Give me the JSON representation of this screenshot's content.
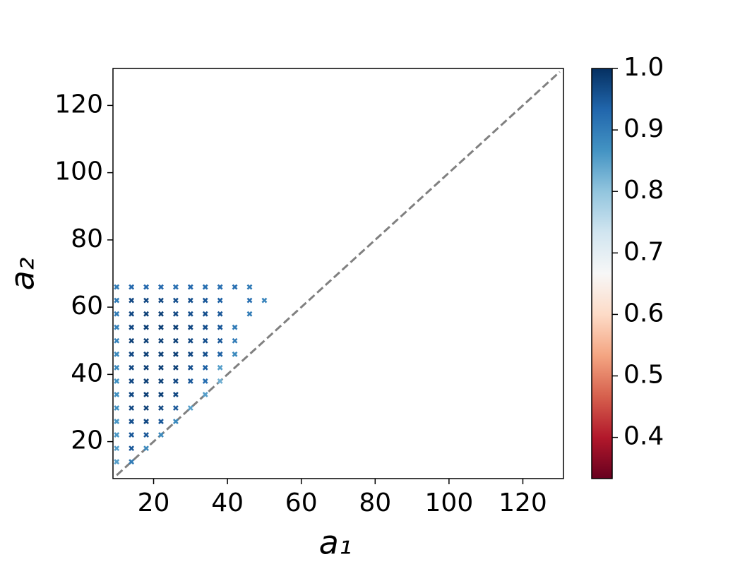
{
  "chart_data": {
    "type": "scatter",
    "xlabel": "a₁",
    "ylabel": "a₂",
    "xlim": [
      9,
      131
    ],
    "ylim": [
      9,
      131
    ],
    "xticks": [
      20,
      40,
      60,
      80,
      100,
      120
    ],
    "yticks": [
      20,
      40,
      60,
      80,
      100,
      120
    ],
    "reference_line": {
      "x": [
        10,
        130
      ],
      "y": [
        10,
        130
      ],
      "color": "#808080"
    },
    "colormap": "RdBu",
    "clim": [
      0.333,
      1.0
    ],
    "cticks": [
      0.4,
      0.5,
      0.6,
      0.7,
      0.8,
      0.9,
      {
        "value": 1,
        "label": "1.0"
      }
    ],
    "x": [
      10,
      14,
      18,
      22,
      26,
      30,
      34,
      38,
      42,
      46,
      10,
      14,
      18,
      22,
      26,
      30,
      34,
      38,
      46,
      50,
      10,
      14,
      18,
      22,
      26,
      30,
      34,
      38,
      46,
      10,
      14,
      18,
      22,
      26,
      30,
      34,
      38,
      42,
      10,
      14,
      18,
      22,
      26,
      30,
      34,
      38,
      42,
      10,
      14,
      18,
      22,
      26,
      30,
      34,
      38,
      42,
      10,
      14,
      18,
      22,
      26,
      30,
      34,
      38,
      10,
      14,
      18,
      22,
      26,
      30,
      34,
      38,
      10,
      14,
      18,
      22,
      26,
      34,
      10,
      14,
      18,
      22,
      26,
      30,
      10,
      14,
      18,
      22,
      26,
      10,
      14,
      18,
      22,
      10,
      14,
      18,
      10,
      14
    ],
    "y": [
      66,
      66,
      66,
      66,
      66,
      66,
      66,
      66,
      66,
      66,
      62,
      62,
      62,
      62,
      62,
      62,
      62,
      62,
      62,
      62,
      58,
      58,
      58,
      58,
      58,
      58,
      58,
      58,
      58,
      54,
      54,
      54,
      54,
      54,
      54,
      54,
      54,
      54,
      50,
      50,
      50,
      50,
      50,
      50,
      50,
      50,
      50,
      46,
      46,
      46,
      46,
      46,
      46,
      46,
      46,
      46,
      42,
      42,
      42,
      42,
      42,
      42,
      42,
      42,
      38,
      38,
      38,
      38,
      38,
      38,
      38,
      38,
      34,
      34,
      34,
      34,
      34,
      34,
      30,
      30,
      30,
      30,
      30,
      30,
      26,
      26,
      26,
      26,
      26,
      22,
      22,
      22,
      22,
      18,
      18,
      18,
      14,
      14
    ],
    "values": [
      0.9,
      0.93,
      0.93,
      0.93,
      0.92,
      0.93,
      0.92,
      0.92,
      0.92,
      0.9,
      0.9,
      0.97,
      0.97,
      0.97,
      0.96,
      0.96,
      0.95,
      0.94,
      0.92,
      0.89,
      0.9,
      0.97,
      0.98,
      0.98,
      0.97,
      0.96,
      0.96,
      0.95,
      0.9,
      0.89,
      0.97,
      0.98,
      0.98,
      0.98,
      0.97,
      0.96,
      0.95,
      0.9,
      0.89,
      0.98,
      0.98,
      0.98,
      0.98,
      0.97,
      0.96,
      0.95,
      0.9,
      0.88,
      0.97,
      0.98,
      0.98,
      0.98,
      0.97,
      0.96,
      0.94,
      0.88,
      0.88,
      0.97,
      0.98,
      0.98,
      0.98,
      0.96,
      0.94,
      0.85,
      0.87,
      0.97,
      0.98,
      0.98,
      0.97,
      0.95,
      0.92,
      0.83,
      0.87,
      0.97,
      0.98,
      0.98,
      0.97,
      0.85,
      0.87,
      0.97,
      0.98,
      0.97,
      0.95,
      0.85,
      0.86,
      0.96,
      0.97,
      0.95,
      0.88,
      0.86,
      0.95,
      0.95,
      0.88,
      0.85,
      0.95,
      0.88,
      0.85,
      0.9
    ]
  }
}
